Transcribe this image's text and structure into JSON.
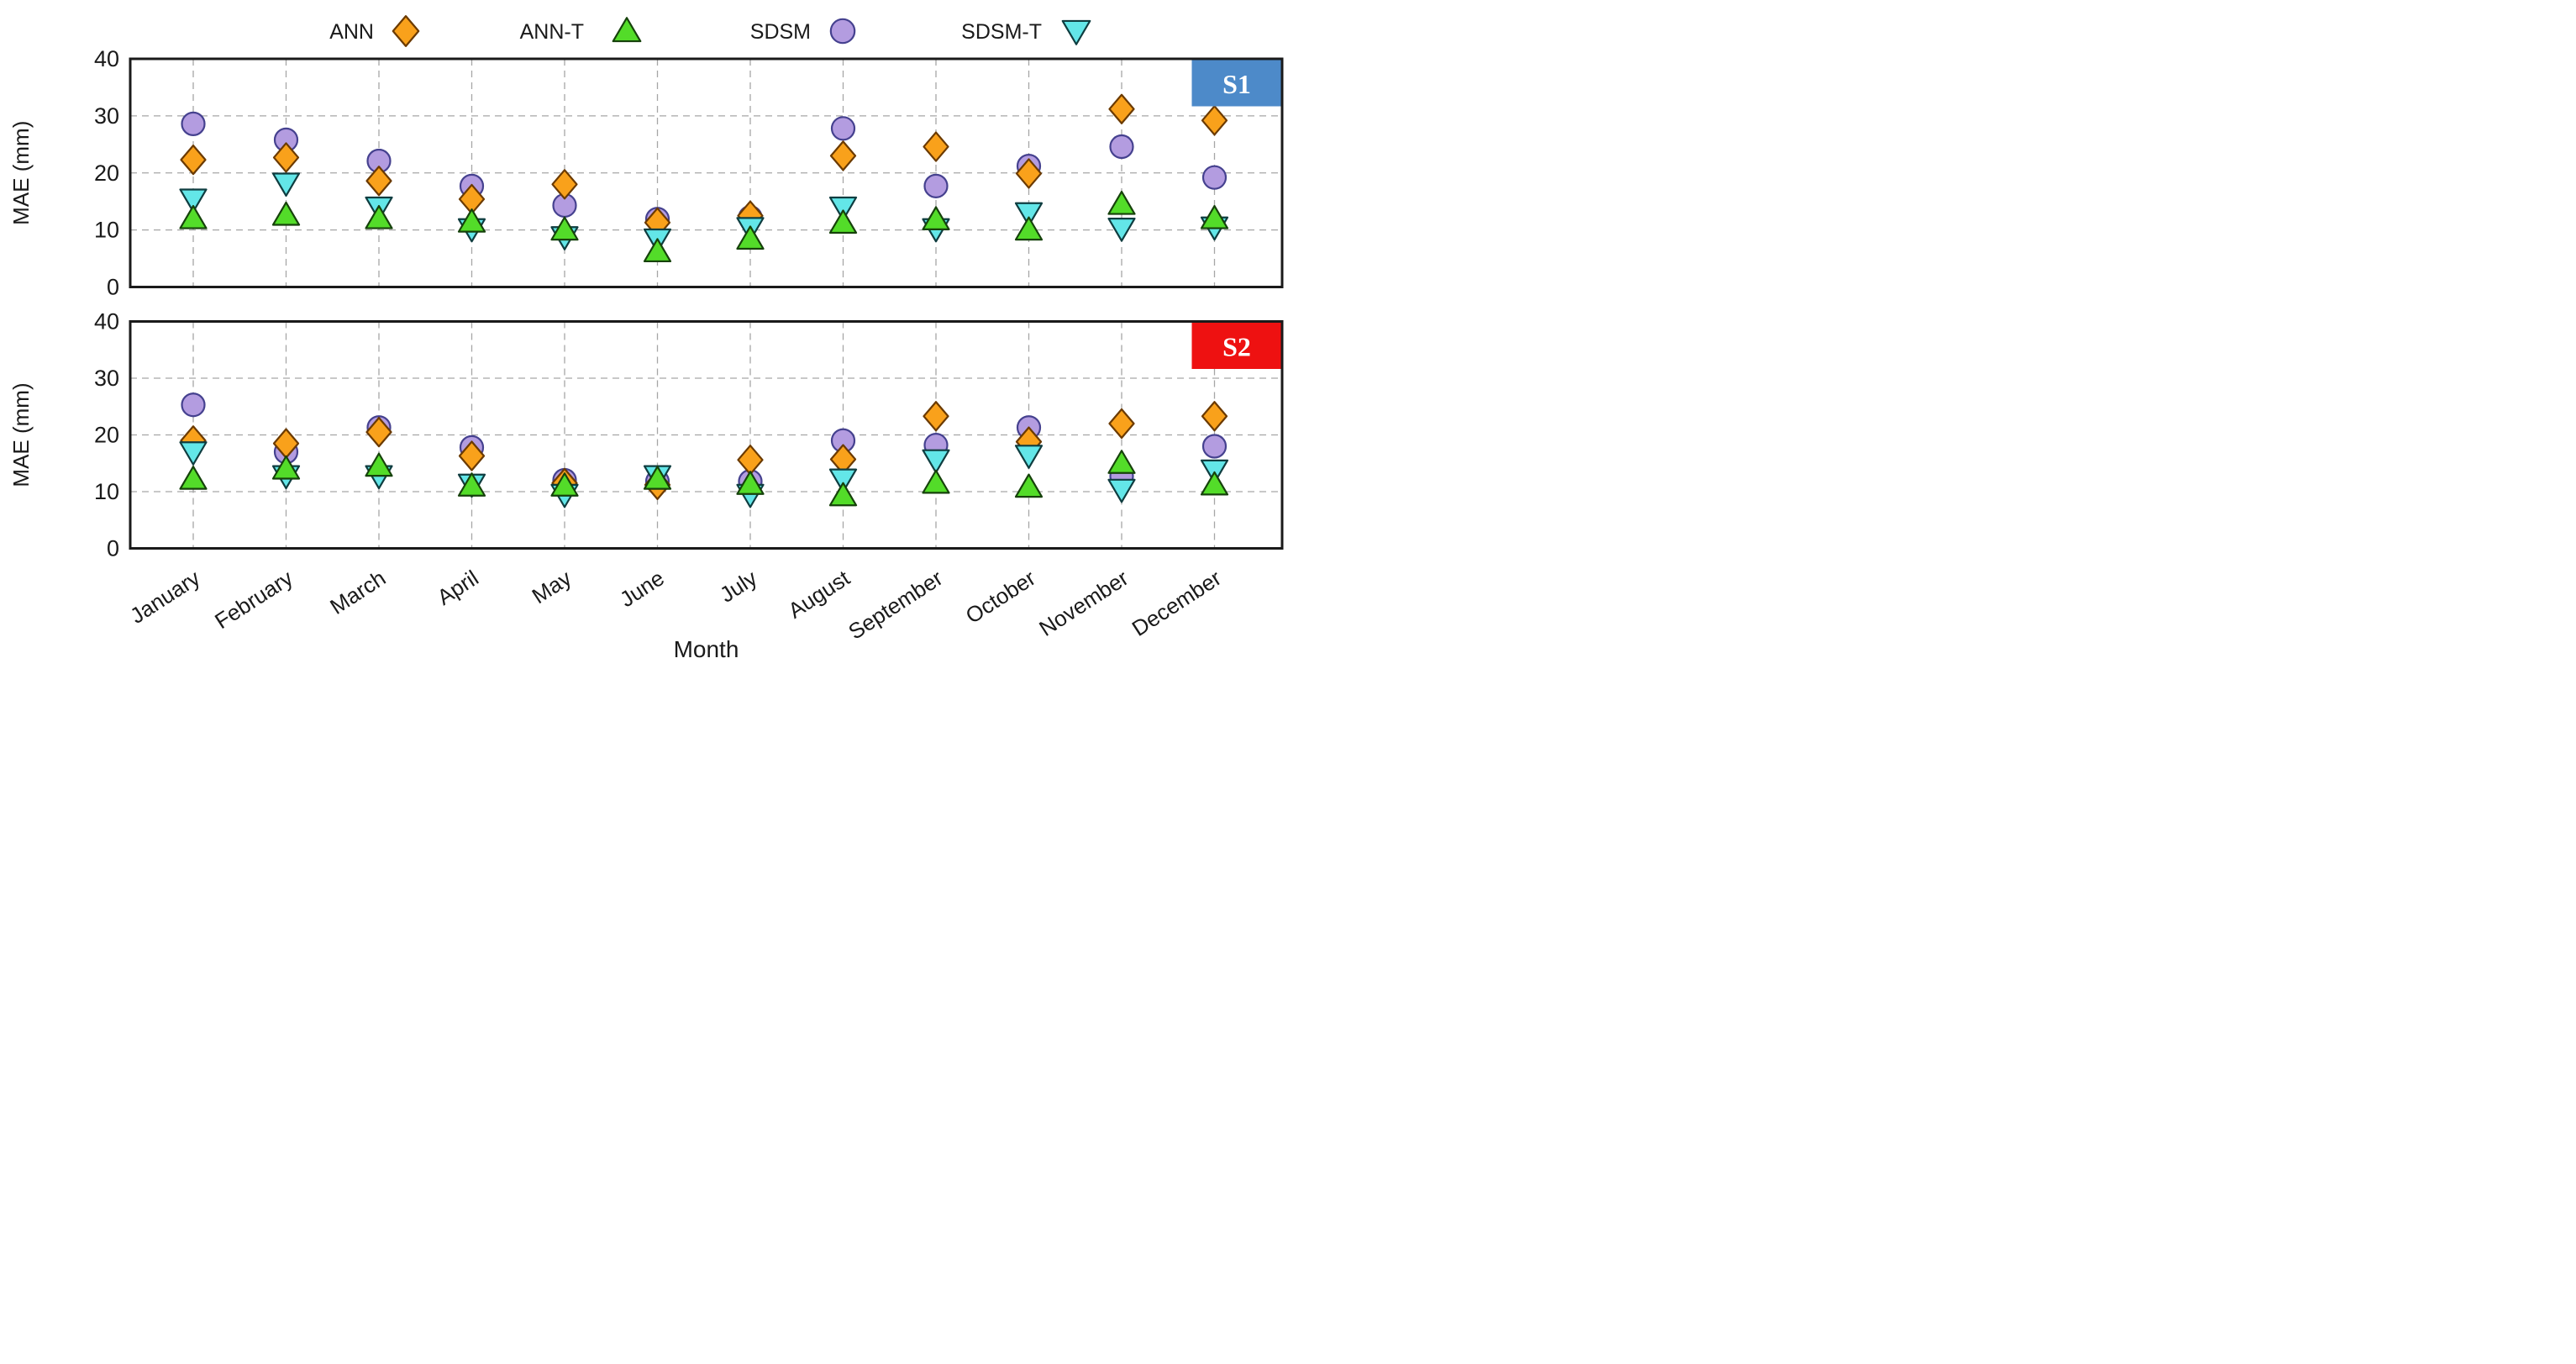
{
  "chart_data": {
    "type": "scatter",
    "title": "",
    "xlabel": "Month",
    "ylabel": "MAE (mm)",
    "ylim": [
      0,
      40
    ],
    "yticks": [
      0,
      10,
      20,
      30,
      40
    ],
    "grid": "dashed-both-axes",
    "legend_position": "top-center",
    "categories": [
      "January",
      "February",
      "March",
      "April",
      "May",
      "June",
      "July",
      "August",
      "September",
      "October",
      "November",
      "December"
    ],
    "series_styles": [
      {
        "name": "ANN",
        "marker": "diamond",
        "fill": "#F9A11B",
        "stroke": "#6B3A00"
      },
      {
        "name": "ANN-T",
        "marker": "triangle-up",
        "fill": "#53DC29",
        "stroke": "#16420B"
      },
      {
        "name": "SDSM",
        "marker": "circle",
        "fill": "#B39CE0",
        "stroke": "#45418F"
      },
      {
        "name": "SDSM-T",
        "marker": "triangle-down",
        "fill": "#63E6E8",
        "stroke": "#0F3D40"
      }
    ],
    "z_order": [
      "SDSM",
      "ANN",
      "SDSM-T",
      "ANN-T"
    ],
    "panels": [
      {
        "label": "S1",
        "badge_color": "#4D8AC9",
        "series": [
          {
            "name": "ANN",
            "values": [
              22.3,
              22.7,
              18.6,
              15.4,
              18.0,
              11.3,
              12.5,
              23.0,
              24.6,
              19.9,
              31.2,
              29.2
            ]
          },
          {
            "name": "ANN-T",
            "values": [
              12.0,
              12.6,
              12.0,
              11.4,
              10.0,
              6.2,
              8.4,
              11.2,
              11.8,
              10.0,
              14.5,
              12.0
            ]
          },
          {
            "name": "SDSM",
            "values": [
              28.6,
              25.8,
              22.1,
              17.7,
              14.3,
              11.9,
              12.2,
              27.8,
              17.7,
              21.2,
              24.6,
              19.2
            ]
          },
          {
            "name": "SDSM-T",
            "values": [
              15.4,
              18.2,
              14.0,
              10.2,
              8.8,
              8.4,
              10.4,
              14.0,
              10.2,
              13.0,
              10.3,
              10.5
            ]
          }
        ]
      },
      {
        "label": "S2",
        "badge_color": "#EE1111",
        "series": [
          {
            "name": "ANN",
            "values": [
              19.0,
              18.5,
              20.5,
              16.3,
              11.5,
              11.2,
              15.6,
              15.7,
              23.3,
              18.8,
              22.0,
              23.3
            ]
          },
          {
            "name": "ANN-T",
            "values": [
              12.2,
              14.0,
              14.5,
              11.0,
              11.0,
              12.2,
              11.3,
              9.3,
              11.5,
              10.8,
              15.0,
              11.2
            ]
          },
          {
            "name": "SDSM",
            "values": [
              25.3,
              17.0,
              21.3,
              17.8,
              12.0,
              11.8,
              11.8,
              19.0,
              18.2,
              21.3,
              12.7,
              18.0
            ]
          },
          {
            "name": "SDSM-T",
            "values": [
              17.0,
              12.8,
              12.8,
              11.3,
              9.5,
              12.8,
              9.5,
              12.2,
              15.6,
              16.4,
              10.4,
              13.8
            ]
          }
        ]
      }
    ]
  }
}
